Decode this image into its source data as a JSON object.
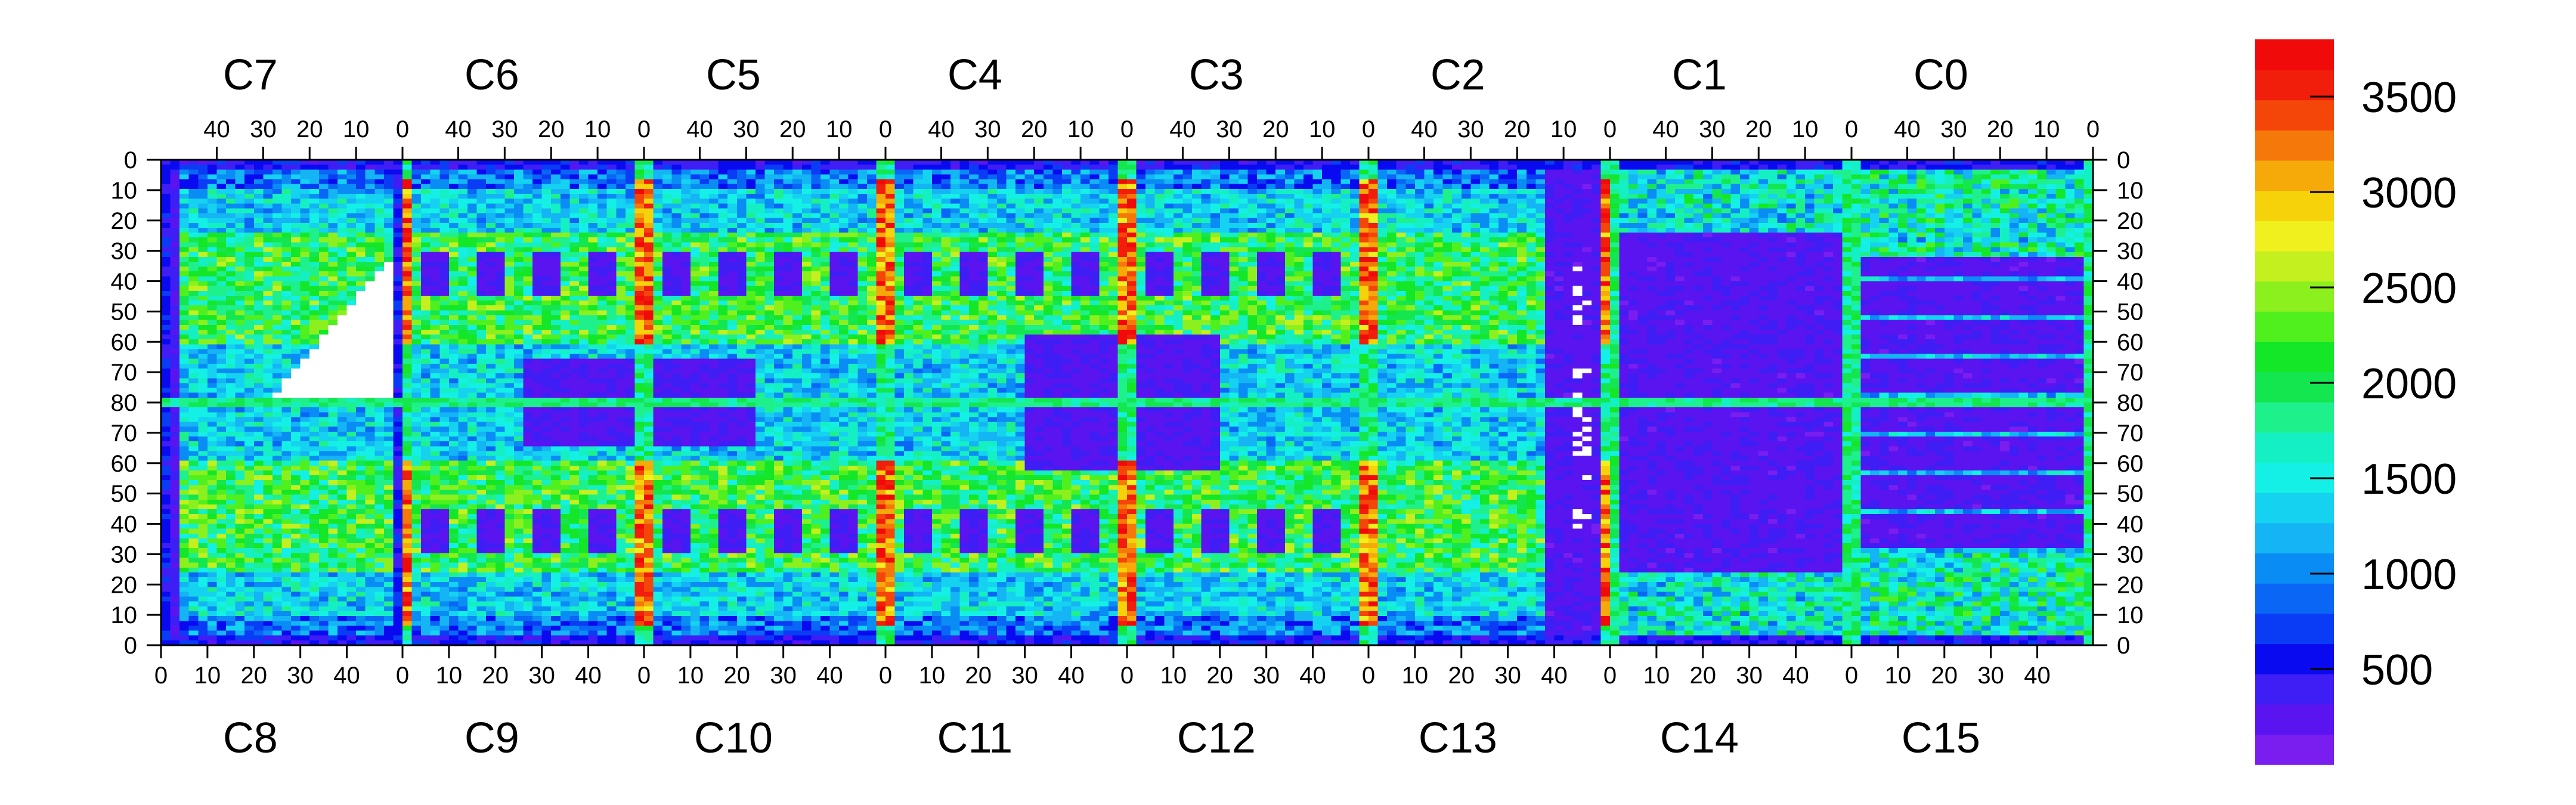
{
  "chart_data": {
    "type": "heatmap",
    "title": "",
    "top_chips": [
      "C7",
      "C6",
      "C5",
      "C4",
      "C3",
      "C2",
      "C1",
      "C0"
    ],
    "bottom_chips": [
      "C8",
      "C9",
      "C10",
      "C11",
      "C12",
      "C13",
      "C14",
      "C15"
    ],
    "columns_per_chip": 52,
    "rows_per_half": 80,
    "top_axis_ticks": [
      "40",
      "30",
      "20",
      "10",
      "0"
    ],
    "bottom_axis_ticks": [
      "0",
      "10",
      "20",
      "30",
      "40"
    ],
    "y_axis_ticks": [
      "0",
      "10",
      "20",
      "30",
      "40",
      "50",
      "60",
      "70",
      "80",
      "70",
      "60",
      "50",
      "40",
      "30",
      "20",
      "10",
      "0"
    ],
    "colorbar": {
      "range": [
        0,
        3800
      ],
      "ticks": [
        "500",
        "1000",
        "1500",
        "2000",
        "2500",
        "3000",
        "3500"
      ],
      "tick_values": [
        500,
        1000,
        1500,
        2000,
        2500,
        3000,
        3500
      ],
      "colors": [
        "#7a1ef0",
        "#5a14f0",
        "#3e1ef5",
        "#0a0af0",
        "#0a3cf5",
        "#0a66f5",
        "#0a8cf5",
        "#14b4f5",
        "#14d2f0",
        "#14f0e6",
        "#14f0c3",
        "#1ef08c",
        "#14e650",
        "#14e628",
        "#50f01e",
        "#8cf01e",
        "#c3f01e",
        "#f0f01e",
        "#f5d20a",
        "#f5aa0a",
        "#f5780a",
        "#f5460a",
        "#f01e0a",
        "#f00a0a"
      ]
    },
    "grid": false,
    "legend": "colorbar-right"
  }
}
